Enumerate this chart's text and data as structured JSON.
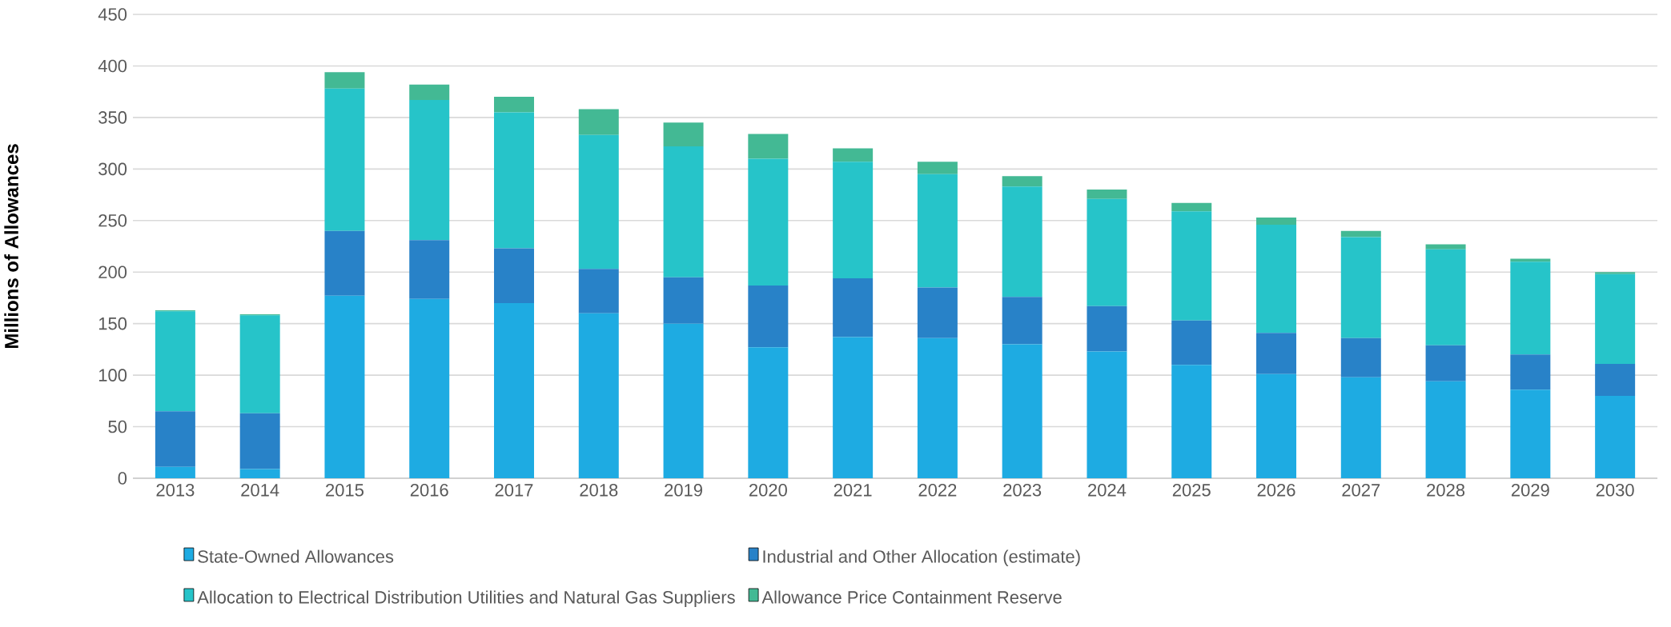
{
  "chart_data": {
    "type": "bar",
    "stacked": true,
    "ylabel": "Millions of Allowances",
    "categories": [
      "2013",
      "2014",
      "2015",
      "2016",
      "2017",
      "2018",
      "2019",
      "2020",
      "2021",
      "2022",
      "2023",
      "2024",
      "2025",
      "2026",
      "2027",
      "2028",
      "2029",
      "2030"
    ],
    "series": [
      {
        "name": "State-Owned Allowances",
        "color": "#1eabe2",
        "values": [
          11,
          9,
          177,
          174,
          170,
          160,
          150,
          127,
          137,
          136,
          130,
          123,
          110,
          101,
          98,
          94,
          86,
          80
        ]
      },
      {
        "name": "Industrial and Other Allocation (estimate)",
        "color": "#2882c8",
        "values": [
          54,
          54,
          63,
          57,
          53,
          43,
          45,
          60,
          57,
          49,
          46,
          44,
          43,
          40,
          38,
          35,
          34,
          31
        ]
      },
      {
        "name": "Allocation to Electrical Distribution Utilities and Natural Gas Suppliers",
        "color": "#26c4c9",
        "values": [
          97,
          95,
          138,
          136,
          132,
          130,
          127,
          123,
          113,
          110,
          107,
          104,
          106,
          105,
          98,
          93,
          90,
          87
        ]
      },
      {
        "name": "Allowance Price Containment Reserve",
        "color": "#43b994",
        "values": [
          1,
          1,
          16,
          15,
          15,
          25,
          23,
          24,
          13,
          12,
          10,
          9,
          8,
          7,
          6,
          5,
          3,
          2
        ]
      }
    ],
    "ylim": [
      0,
      450
    ],
    "yticks": [
      0,
      50,
      100,
      150,
      200,
      250,
      300,
      350,
      400,
      450
    ],
    "grid": "y",
    "legend": "bottom"
  }
}
